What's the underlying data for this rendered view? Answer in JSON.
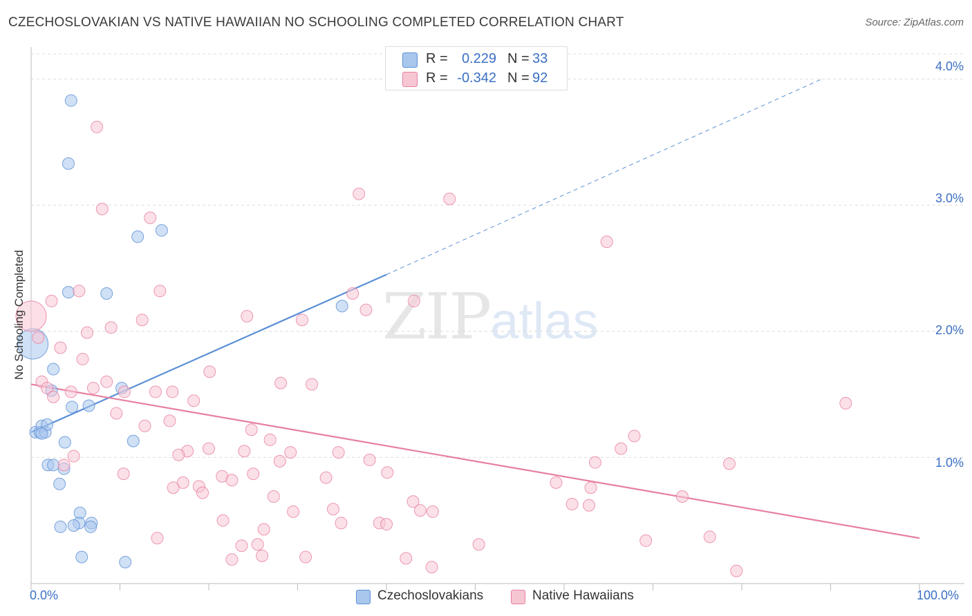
{
  "title": "CZECHOSLOVAKIAN VS NATIVE HAWAIIAN NO SCHOOLING COMPLETED CORRELATION CHART",
  "source": "Source: ZipAtlas.com",
  "watermark": {
    "zip": "ZIP",
    "atlas": "atlas"
  },
  "legend_top": {
    "rows": [
      {
        "r_label": "R =",
        "r_value": "0.229",
        "n_label": "N =",
        "n_value": "33",
        "color": "#a9c7ec",
        "border": "#5a8fd6"
      },
      {
        "r_label": "R =",
        "r_value": "-0.342",
        "n_label": "N =",
        "n_value": "92",
        "color": "#f7c6d3",
        "border": "#e77fa0"
      }
    ]
  },
  "legend_bottom": [
    {
      "label": "Czechoslovakians",
      "color": "#a9c7ec",
      "border": "#5a8fd6"
    },
    {
      "label": "Native Hawaiians",
      "color": "#f7c6d3",
      "border": "#e77fa0"
    }
  ],
  "axes": {
    "ylabel": "No Schooling Completed",
    "x_tick_left": "0.0%",
    "x_tick_right": "100.0%",
    "y_ticks": [
      "4.0%",
      "3.0%",
      "2.0%",
      "1.0%"
    ]
  },
  "chart_data": {
    "type": "scatter",
    "title": "CZECHOSLOVAKIAN VS NATIVE HAWAIIAN NO SCHOOLING COMPLETED CORRELATION CHART",
    "xlabel": "",
    "ylabel": "No Schooling Completed",
    "xlim": [
      0,
      100
    ],
    "ylim": [
      0,
      4.2
    ],
    "y_ticks": [
      1.0,
      2.0,
      3.0,
      4.0
    ],
    "grid": true,
    "series": [
      {
        "name": "Czechoslovakians",
        "color": "#5a8fd6",
        "fill": "#a9c7ec",
        "trend": {
          "x0": 0,
          "y0": 1.2,
          "x1": 40,
          "y1": 2.45,
          "dashed_to_x": 89,
          "dashed_to_y": 4.0
        },
        "points": [
          [
            4.5,
            3.83
          ],
          [
            4.2,
            3.33
          ],
          [
            12.0,
            2.75
          ],
          [
            14.7,
            2.8
          ],
          [
            4.2,
            2.31
          ],
          [
            8.5,
            2.3
          ],
          [
            35.0,
            2.2
          ],
          [
            0.2,
            1.9
          ],
          [
            2.5,
            1.7
          ],
          [
            2.3,
            1.53
          ],
          [
            10.2,
            1.55
          ],
          [
            4.6,
            1.4
          ],
          [
            6.5,
            1.41
          ],
          [
            0.5,
            1.2
          ],
          [
            1.0,
            1.2
          ],
          [
            1.2,
            1.25
          ],
          [
            1.6,
            1.2
          ],
          [
            1.8,
            1.26
          ],
          [
            3.8,
            1.12
          ],
          [
            11.5,
            1.13
          ],
          [
            1.9,
            0.94
          ],
          [
            2.5,
            0.94
          ],
          [
            3.7,
            0.91
          ],
          [
            3.2,
            0.79
          ],
          [
            5.5,
            0.56
          ],
          [
            5.4,
            0.48
          ],
          [
            3.3,
            0.45
          ],
          [
            4.8,
            0.46
          ],
          [
            6.8,
            0.48
          ],
          [
            6.7,
            0.45
          ],
          [
            5.7,
            0.21
          ],
          [
            10.6,
            0.17
          ],
          [
            1.2,
            1.19
          ]
        ],
        "point_sizes": [
          1,
          1,
          1,
          1,
          1,
          1,
          1,
          3,
          1,
          1,
          1,
          1,
          1,
          1,
          1,
          1,
          1,
          1,
          1,
          1,
          1,
          1,
          1,
          1,
          1,
          1,
          1,
          1,
          1,
          1,
          1,
          1,
          1
        ]
      },
      {
        "name": "Native Hawaiians",
        "color": "#e77fa0",
        "fill": "#f7c6d3",
        "trend": {
          "x0": 0,
          "y0": 1.58,
          "x1": 100,
          "y1": 0.36
        },
        "points": [
          [
            7.4,
            3.62
          ],
          [
            36.9,
            3.09
          ],
          [
            47.1,
            3.05
          ],
          [
            8.0,
            2.97
          ],
          [
            13.4,
            2.9
          ],
          [
            64.8,
            2.71
          ],
          [
            5.4,
            2.32
          ],
          [
            14.5,
            2.32
          ],
          [
            36.2,
            2.3
          ],
          [
            2.3,
            2.24
          ],
          [
            43.1,
            2.24
          ],
          [
            0.0,
            2.12
          ],
          [
            24.3,
            2.12
          ],
          [
            12.5,
            2.09
          ],
          [
            30.5,
            2.09
          ],
          [
            37.7,
            2.17
          ],
          [
            9.0,
            2.03
          ],
          [
            6.3,
            1.99
          ],
          [
            0.8,
            1.95
          ],
          [
            3.3,
            1.87
          ],
          [
            5.8,
            1.78
          ],
          [
            20.1,
            1.68
          ],
          [
            1.2,
            1.6
          ],
          [
            8.5,
            1.6
          ],
          [
            28.1,
            1.59
          ],
          [
            31.6,
            1.58
          ],
          [
            1.8,
            1.55
          ],
          [
            4.5,
            1.52
          ],
          [
            7.0,
            1.55
          ],
          [
            10.5,
            1.52
          ],
          [
            14.0,
            1.52
          ],
          [
            15.9,
            1.52
          ],
          [
            2.5,
            1.48
          ],
          [
            18.3,
            1.45
          ],
          [
            91.7,
            1.43
          ],
          [
            9.6,
            1.35
          ],
          [
            12.8,
            1.25
          ],
          [
            15.6,
            1.29
          ],
          [
            24.8,
            1.22
          ],
          [
            67.9,
            1.17
          ],
          [
            26.9,
            1.14
          ],
          [
            20.0,
            1.07
          ],
          [
            17.6,
            1.05
          ],
          [
            24.0,
            1.05
          ],
          [
            29.2,
            1.04
          ],
          [
            34.6,
            1.04
          ],
          [
            66.4,
            1.07
          ],
          [
            16.6,
            1.02
          ],
          [
            4.8,
            1.01
          ],
          [
            38.1,
            0.98
          ],
          [
            28.0,
            0.97
          ],
          [
            63.5,
            0.96
          ],
          [
            78.6,
            0.95
          ],
          [
            3.7,
            0.94
          ],
          [
            10.4,
            0.87
          ],
          [
            25.0,
            0.87
          ],
          [
            40.1,
            0.88
          ],
          [
            21.5,
            0.85
          ],
          [
            22.6,
            0.82
          ],
          [
            33.2,
            0.84
          ],
          [
            17.1,
            0.8
          ],
          [
            59.1,
            0.8
          ],
          [
            18.9,
            0.77
          ],
          [
            16.0,
            0.76
          ],
          [
            63.0,
            0.76
          ],
          [
            19.3,
            0.72
          ],
          [
            27.3,
            0.69
          ],
          [
            73.3,
            0.69
          ],
          [
            43.0,
            0.65
          ],
          [
            60.9,
            0.63
          ],
          [
            62.8,
            0.62
          ],
          [
            34.0,
            0.59
          ],
          [
            29.5,
            0.57
          ],
          [
            43.8,
            0.58
          ],
          [
            45.2,
            0.57
          ],
          [
            21.6,
            0.5
          ],
          [
            34.9,
            0.48
          ],
          [
            39.2,
            0.48
          ],
          [
            40.0,
            0.47
          ],
          [
            26.2,
            0.43
          ],
          [
            14.2,
            0.36
          ],
          [
            23.7,
            0.3
          ],
          [
            25.5,
            0.31
          ],
          [
            50.4,
            0.31
          ],
          [
            69.2,
            0.34
          ],
          [
            76.4,
            0.37
          ],
          [
            26.0,
            0.22
          ],
          [
            30.9,
            0.21
          ],
          [
            42.2,
            0.2
          ],
          [
            22.6,
            0.19
          ],
          [
            45.1,
            0.13
          ],
          [
            79.4,
            0.1
          ]
        ],
        "point_sizes": [
          1,
          1,
          1,
          1,
          1,
          1,
          1,
          1,
          1,
          1,
          1,
          3,
          1,
          1,
          1,
          1,
          1,
          1,
          1,
          1,
          1,
          1,
          1,
          1,
          1,
          1,
          1,
          1,
          1,
          1,
          1,
          1,
          1,
          1,
          1,
          1,
          1,
          1,
          1,
          1,
          1,
          1,
          1,
          1,
          1,
          1,
          1,
          1,
          1,
          1,
          1,
          1,
          1,
          1,
          1,
          1,
          1,
          1,
          1,
          1,
          1,
          1,
          1,
          1,
          1,
          1,
          1,
          1,
          1,
          1,
          1,
          1,
          1,
          1,
          1,
          1,
          1,
          1,
          1,
          1,
          1,
          1,
          1,
          1,
          1,
          1,
          1,
          1,
          1,
          1,
          1,
          1
        ]
      }
    ]
  }
}
